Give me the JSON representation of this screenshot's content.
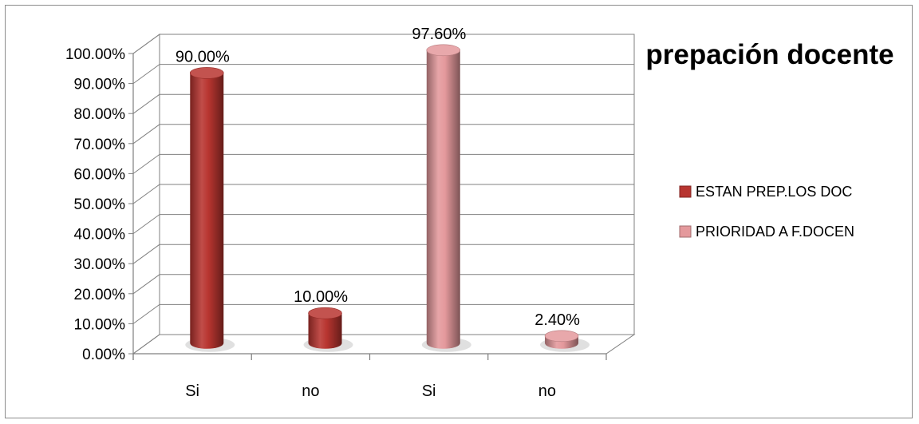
{
  "chart_data": {
    "type": "bar",
    "title": "prepación docente",
    "categories": [
      "Si",
      "no",
      "Si",
      "no"
    ],
    "series": [
      {
        "name": "ESTAN PREP.LOS DOC",
        "color": "#b83530",
        "points": [
          {
            "category_index": 0,
            "value": 0.9,
            "label": "90.00%"
          },
          {
            "category_index": 1,
            "value": 0.1,
            "label": "10.00%"
          }
        ]
      },
      {
        "name": "PRIORIDAD A F.DOCEN",
        "color": "#e4999c",
        "points": [
          {
            "category_index": 2,
            "value": 0.976,
            "label": "97.60%"
          },
          {
            "category_index": 3,
            "value": 0.024,
            "label": "2.40%"
          }
        ]
      }
    ],
    "yticks": [
      "0.00%",
      "10.00%",
      "20.00%",
      "30.00%",
      "40.00%",
      "50.00%",
      "60.00%",
      "70.00%",
      "80.00%",
      "90.00%",
      "100.00%"
    ],
    "ylim": [
      0,
      1
    ],
    "grid": true,
    "legend_position": "right",
    "style": "3d-cylinder"
  }
}
